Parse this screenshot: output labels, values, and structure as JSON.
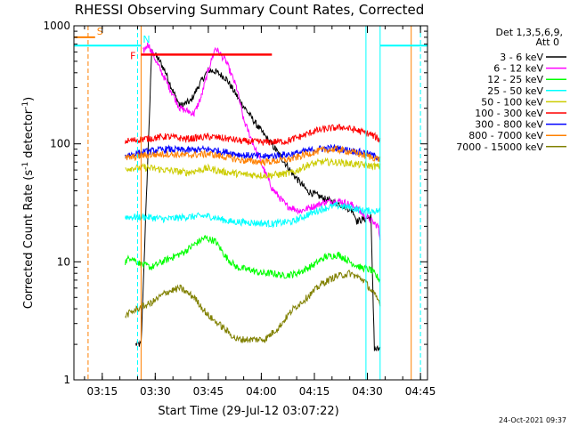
{
  "chart_data": {
    "type": "line",
    "title": "RHESSI Observing Summary Count Rates, Corrected",
    "xlabel": "Start Time (29-Jul-12 03:07:22)",
    "ylabel": "Corrected Count Rate (s",
    "ylabel_sup1": "-1",
    "ylabel_mid": " detector",
    "ylabel_sup2": "-1",
    "ylabel_end": ")",
    "yscale": "log",
    "ylim": [
      1,
      1000
    ],
    "xlim_minutes": [
      0,
      100
    ],
    "x_ticks": [
      {
        "label": "03:15",
        "minutes": 8.0
      },
      {
        "label": "03:30",
        "minutes": 23.0
      },
      {
        "label": "03:45",
        "minutes": 38.0
      },
      {
        "label": "04:00",
        "minutes": 53.0
      },
      {
        "label": "04:15",
        "minutes": 68.0
      },
      {
        "label": "04:30",
        "minutes": 83.0
      },
      {
        "label": "04:45",
        "minutes": 98.0
      }
    ],
    "y_ticks": [
      {
        "label": "1",
        "value": 1
      },
      {
        "label": "10",
        "value": 10
      },
      {
        "label": "100",
        "value": 100
      },
      {
        "label": "1000",
        "value": 1000
      }
    ],
    "legend_header": [
      "Det 1,3,5,6,9,",
      "Att 0"
    ],
    "legend_placement": "right",
    "series": [
      {
        "name": "3 - 6 keV",
        "color": "#000000",
        "t": [
          0,
          17,
          17.5,
          19,
          22,
          24,
          26,
          28,
          30,
          33,
          36,
          38,
          40,
          43,
          47,
          52,
          57,
          62,
          66,
          71,
          75,
          79,
          80,
          84,
          85,
          86,
          86.6,
          87
        ],
        "v": [
          null,
          null,
          2,
          2,
          610,
          520,
          400,
          280,
          210,
          230,
          340,
          420,
          410,
          360,
          230,
          140,
          90,
          55,
          40,
          34,
          31,
          27,
          22,
          24,
          1.8,
          1.8,
          1.8,
          null
        ]
      },
      {
        "name": "6 - 12 keV",
        "color": "#ff00ff",
        "t": [
          0,
          19,
          19.5,
          21,
          24,
          27,
          30,
          34,
          36,
          38,
          40,
          43,
          46,
          48,
          52,
          56,
          60,
          64,
          67,
          71,
          75,
          79,
          82,
          86,
          86.6,
          87
        ],
        "v": [
          null,
          null,
          600,
          700,
          450,
          300,
          200,
          180,
          250,
          420,
          650,
          500,
          300,
          160,
          80,
          42,
          30,
          27,
          29,
          32,
          33,
          30,
          25,
          20,
          16,
          null
        ]
      },
      {
        "name": "12 - 25 keV",
        "color": "#00ff00",
        "t": [
          0,
          14,
          14.5,
          16,
          19,
          22,
          25,
          28,
          31,
          34,
          37,
          40,
          43,
          46,
          50,
          53,
          56,
          59,
          62,
          65,
          68,
          71,
          75,
          78,
          81,
          84,
          86.6,
          87
        ],
        "v": [
          null,
          null,
          10,
          11,
          9.5,
          9,
          10,
          11,
          12,
          14,
          16,
          15,
          11,
          9,
          8.5,
          8,
          8,
          7.7,
          7.8,
          8.5,
          9.5,
          11,
          11.5,
          10,
          9,
          8.5,
          7,
          null
        ]
      },
      {
        "name": "25 - 50 keV",
        "color": "#00ffff",
        "t": [
          0,
          14,
          14.5,
          20,
          26,
          32,
          38,
          44,
          50,
          56,
          62,
          66,
          70,
          74,
          78,
          82,
          86.6,
          87
        ],
        "v": [
          null,
          null,
          24,
          24,
          23,
          24,
          24.5,
          22,
          21.5,
          21,
          22,
          25,
          28,
          30,
          29,
          27,
          27,
          null
        ]
      },
      {
        "name": "50 - 100 keV",
        "color": "#cccc00",
        "t": [
          0,
          14,
          14.5,
          20,
          26,
          32,
          38,
          42,
          48,
          54,
          58,
          62,
          66,
          70,
          74,
          78,
          82,
          86.6,
          87
        ],
        "v": [
          null,
          null,
          62,
          63,
          60,
          57,
          62,
          58,
          55,
          54,
          55,
          57,
          66,
          70,
          70,
          68,
          66,
          64,
          null
        ]
      },
      {
        "name": "100 - 300 keV",
        "color": "#ff0000",
        "t": [
          0,
          14,
          14.5,
          20,
          26,
          32,
          38,
          42,
          48,
          54,
          60,
          64,
          68,
          72,
          76,
          80,
          84,
          86.6,
          87
        ],
        "v": [
          null,
          null,
          105,
          110,
          115,
          110,
          115,
          112,
          105,
          103,
          105,
          115,
          128,
          135,
          138,
          130,
          120,
          108,
          null
        ]
      },
      {
        "name": "300 - 800 keV",
        "color": "#0000ff",
        "t": [
          0,
          14,
          14.5,
          20,
          26,
          32,
          38,
          42,
          48,
          54,
          58,
          62,
          66,
          70,
          74,
          78,
          82,
          86.6,
          87
        ],
        "v": [
          null,
          null,
          80,
          85,
          90,
          88,
          90,
          86,
          80,
          78,
          80,
          82,
          87,
          91,
          92,
          88,
          84,
          76,
          null
        ]
      },
      {
        "name": "800 - 7000 keV",
        "color": "#ff8000",
        "t": [
          0,
          14,
          14.5,
          20,
          26,
          32,
          38,
          42,
          48,
          54,
          58,
          62,
          66,
          70,
          74,
          78,
          82,
          86.6,
          87
        ],
        "v": [
          null,
          null,
          75,
          80,
          82,
          80,
          82,
          78,
          72,
          70,
          72,
          75,
          82,
          88,
          90,
          86,
          80,
          74,
          null
        ]
      },
      {
        "name": "7000 - 15000 keV",
        "color": "#808000",
        "t": [
          0,
          14,
          14.5,
          18,
          22,
          26,
          30,
          34,
          38,
          42,
          46,
          50,
          54,
          58,
          62,
          66,
          70,
          74,
          78,
          82,
          86.6,
          87
        ],
        "v": [
          null,
          null,
          3.5,
          4,
          4.5,
          5.5,
          6,
          5,
          3.5,
          2.8,
          2.2,
          2.2,
          2.2,
          2.8,
          4,
          5,
          6.5,
          7.5,
          8,
          7,
          4.5,
          null
        ]
      }
    ],
    "annotations": [
      {
        "label": "S",
        "color": "#ff8000",
        "x_start_min": 0,
        "x_end_min": 6,
        "value": 800
      },
      {
        "label": "N",
        "color": "#00ffff",
        "x_start_min": 0,
        "x_end_min": 19,
        "value": 680
      },
      {
        "label": "N",
        "color": "#00ffff",
        "x_start_min": 86.6,
        "x_end_min": 100,
        "value": 680
      },
      {
        "label": "F",
        "color": "#ff0000",
        "x_start_min": 19,
        "x_end_min": 56,
        "value": 570
      }
    ],
    "vertical_markers": [
      {
        "color": "#ff8000",
        "style": "dashed",
        "minutes": 4
      },
      {
        "color": "#ff8000",
        "style": "solid",
        "minutes": 19
      },
      {
        "color": "#00ffff",
        "style": "dashed",
        "minutes": 18
      },
      {
        "color": "#00ffff",
        "style": "solid",
        "minutes": 82.6
      },
      {
        "color": "#00ffff",
        "style": "solid",
        "minutes": 86.6
      },
      {
        "color": "#ff8000",
        "style": "solid",
        "minutes": 95.4
      },
      {
        "color": "#00ffff",
        "style": "dashed",
        "minutes": 98
      }
    ]
  },
  "timestamp": "24-Oct-2021 09:37"
}
